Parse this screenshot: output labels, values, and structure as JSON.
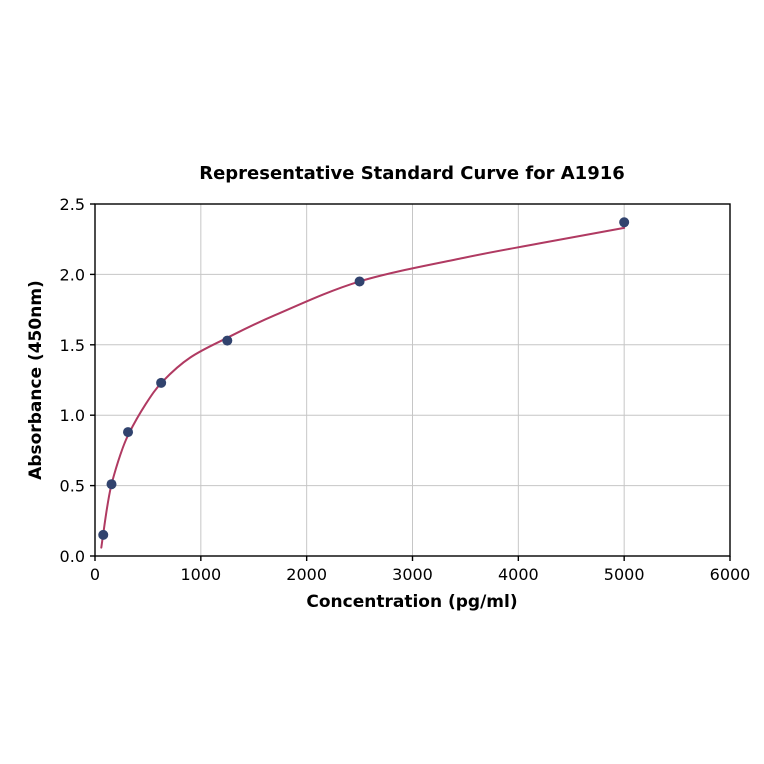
{
  "chart_data": {
    "type": "scatter",
    "title": "Representative Standard Curve for A1916",
    "xlabel": "Concentration (pg/ml)",
    "ylabel": "Absorbance (450nm)",
    "xlim": [
      0,
      6000
    ],
    "ylim": [
      0,
      2.5
    ],
    "x_ticks": [
      0,
      1000,
      2000,
      3000,
      4000,
      5000,
      6000
    ],
    "x_tick_labels": [
      "0",
      "1000",
      "2000",
      "3000",
      "4000",
      "5000",
      "6000"
    ],
    "y_ticks": [
      0,
      0.5,
      1.0,
      1.5,
      2.0,
      2.5
    ],
    "y_tick_labels": [
      "0.0",
      "0.5",
      "1.0",
      "1.5",
      "2.0",
      "2.5"
    ],
    "grid": true,
    "legend_position": "none",
    "colors": {
      "background": "#ffffff",
      "grid": "#c6c6c6",
      "frame": "#000000",
      "curve": "#b03a62",
      "points": "#31436e"
    },
    "series": [
      {
        "name": "standard-points",
        "marker": "circle",
        "color": "#31436e",
        "x": [
          78,
          156,
          312,
          625,
          1250,
          2500,
          5000
        ],
        "y": [
          0.15,
          0.51,
          0.88,
          1.23,
          1.53,
          1.95,
          2.37
        ]
      }
    ],
    "fit_curve": {
      "name": "fitted-standard-curve",
      "color": "#b03a62",
      "points": [
        [
          60,
          0.06
        ],
        [
          80,
          0.17
        ],
        [
          120,
          0.37
        ],
        [
          160,
          0.52
        ],
        [
          240,
          0.72
        ],
        [
          320,
          0.87
        ],
        [
          480,
          1.08
        ],
        [
          640,
          1.24
        ],
        [
          900,
          1.41
        ],
        [
          1250,
          1.55
        ],
        [
          1700,
          1.71
        ],
        [
          2500,
          1.95
        ],
        [
          3500,
          2.12
        ],
        [
          4200,
          2.22
        ],
        [
          5000,
          2.33
        ]
      ]
    }
  }
}
